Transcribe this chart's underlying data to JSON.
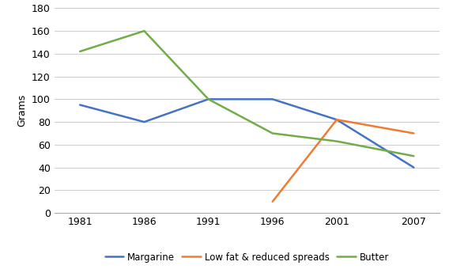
{
  "years": [
    1981,
    1986,
    1991,
    1996,
    2001,
    2007
  ],
  "margarine": [
    95,
    80,
    100,
    100,
    82,
    40
  ],
  "low_fat": [
    null,
    null,
    null,
    10,
    82,
    70
  ],
  "butter": [
    142,
    160,
    100,
    70,
    63,
    50
  ],
  "ylabel": "Grams",
  "ylim": [
    0,
    180
  ],
  "yticks": [
    0,
    20,
    40,
    60,
    80,
    100,
    120,
    140,
    160,
    180
  ],
  "legend_labels": [
    "Margarine",
    "Low fat & reduced spreads",
    "Butter"
  ],
  "margarine_color": "#4472C4",
  "low_fat_color": "#ED7D31",
  "butter_color": "#70AD47",
  "background_color": "#FFFFFF",
  "xlim_left": 1979,
  "xlim_right": 2009,
  "linewidth": 1.8
}
